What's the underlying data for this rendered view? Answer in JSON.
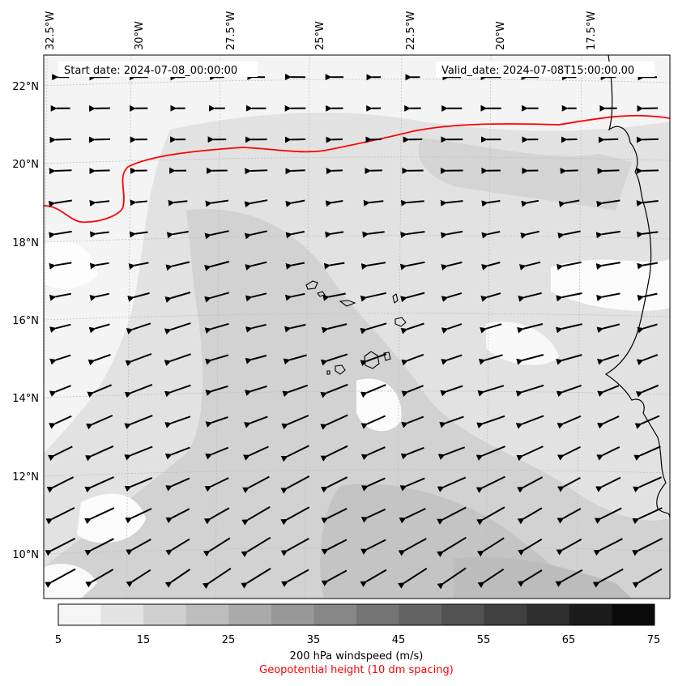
{
  "header": {
    "start_date": "Start date: 2024-07-08_00:00:00",
    "valid_date": "Valid_date: 2024-07-08T15:00:00.00"
  },
  "axes": {
    "lon_labels": [
      "32.5°W",
      "30°W",
      "27.5°W",
      "25°W",
      "22.5°W",
      "20°W",
      "17.5°W"
    ],
    "lat_labels": [
      "22°N",
      "20°N",
      "18°N",
      "16°N",
      "14°N",
      "12°N",
      "10°N"
    ]
  },
  "colorbar": {
    "ticks": [
      "5",
      "15",
      "25",
      "35",
      "45",
      "55",
      "65",
      "75"
    ],
    "label": "200 hPa windspeed (m/s)",
    "sublabel": "Geopotential height (10 dm spacing)",
    "colors": [
      "#f5f5f5",
      "#e3e3e3",
      "#d0d0d0",
      "#bdbdbd",
      "#aaaaaa",
      "#989898",
      "#878787",
      "#757575",
      "#636363",
      "#525252",
      "#404040",
      "#2e2e2e",
      "#1c1c1c",
      "#0a0a0a"
    ]
  },
  "map": {
    "contour_color": "#ff0000",
    "background_fill": "#f2f2f2",
    "coast_color": "#000000",
    "grid_color": "#bbbbbb"
  }
}
